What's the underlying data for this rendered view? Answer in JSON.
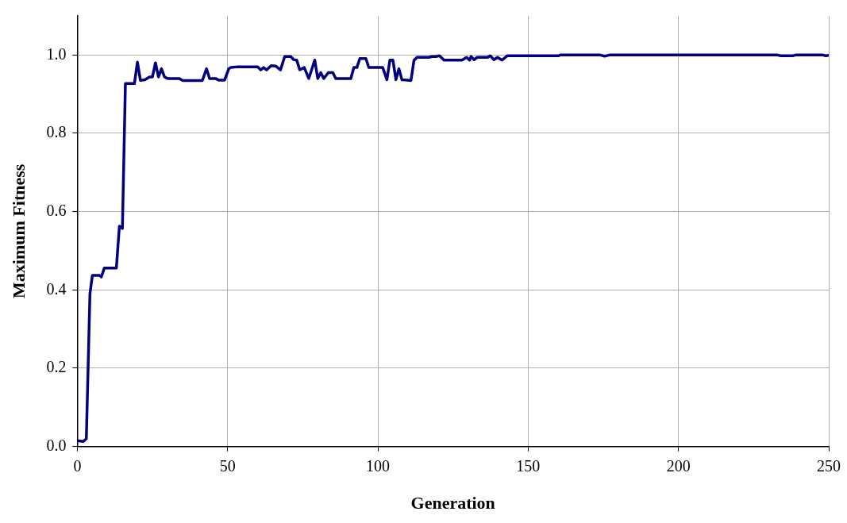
{
  "chart_data": {
    "type": "line",
    "xlabel": "Generation",
    "ylabel": "Maximum Fitness",
    "xlim": [
      0,
      250
    ],
    "xticks": [
      0,
      50,
      100,
      150,
      200,
      250
    ],
    "ylim": [
      0,
      1.1
    ],
    "yticks": [
      {
        "value": 0,
        "label": "0.0"
      },
      0.2,
      0.4,
      0.6,
      0.8,
      {
        "value": 1,
        "label": "1.0"
      }
    ],
    "grid": true,
    "legend": false,
    "marker": "none",
    "line_style": "solid",
    "series": [
      {
        "color": "#000080",
        "x": [
          0,
          2,
          3,
          4.2,
          5,
          7.4,
          8,
          9,
          13,
          14,
          15,
          16,
          19,
          20,
          21,
          22.5,
          24,
          25,
          26,
          27,
          28,
          29,
          30,
          34,
          35,
          41.6,
          43,
          44,
          46,
          47,
          49,
          50.4,
          51,
          53.5,
          60,
          61,
          62,
          63,
          64.5,
          66,
          67.6,
          69,
          71,
          72,
          73,
          74,
          75.5,
          77,
          79,
          80,
          81,
          82,
          83.5,
          85,
          86,
          91,
          92,
          93,
          94,
          96,
          97,
          101.6,
          103,
          104,
          105,
          106,
          107,
          108,
          111,
          112,
          113,
          117,
          118,
          119.3,
          120.5,
          122,
          128,
          129.5,
          130.5,
          131,
          132,
          133,
          136.5,
          137.4,
          138.6,
          139.8,
          141.3,
          143,
          160,
          160.7,
          174,
          175.4,
          177,
          233,
          234,
          238,
          239,
          248,
          249,
          250
        ],
        "values": [
          0.015,
          0.013,
          0.02,
          0.39,
          0.437,
          0.437,
          0.433,
          0.456,
          0.456,
          0.563,
          0.557,
          0.927,
          0.927,
          0.982,
          0.935,
          0.937,
          0.944,
          0.944,
          0.98,
          0.944,
          0.965,
          0.944,
          0.94,
          0.94,
          0.935,
          0.935,
          0.965,
          0.94,
          0.94,
          0.936,
          0.936,
          0.965,
          0.968,
          0.97,
          0.97,
          0.962,
          0.968,
          0.962,
          0.973,
          0.972,
          0.962,
          0.996,
          0.996,
          0.988,
          0.987,
          0.962,
          0.968,
          0.94,
          0.987,
          0.94,
          0.955,
          0.94,
          0.955,
          0.955,
          0.94,
          0.94,
          0.968,
          0.968,
          0.991,
          0.991,
          0.968,
          0.968,
          0.937,
          0.987,
          0.987,
          0.937,
          0.965,
          0.937,
          0.935,
          0.986,
          0.994,
          0.994,
          0.996,
          0.996,
          0.998,
          0.987,
          0.987,
          0.994,
          0.987,
          0.996,
          0.988,
          0.994,
          0.994,
          0.998,
          0.988,
          0.994,
          0.987,
          0.998,
          0.998,
          1.0,
          1.0,
          0.997,
          1.0,
          1.0,
          0.998,
          0.998,
          1.0,
          1.0,
          0.998,
          0.999
        ]
      }
    ]
  }
}
